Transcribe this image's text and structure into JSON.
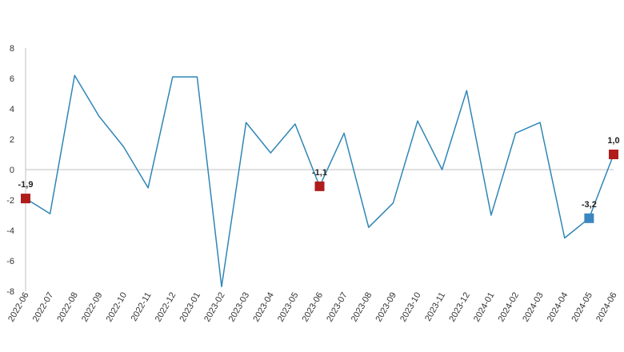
{
  "chart_data": {
    "type": "line",
    "categories": [
      "2022-06",
      "2022-07",
      "2022-08",
      "2022-09",
      "2022-10",
      "2022-11",
      "2022-12",
      "2023-01",
      "2023-02",
      "2023-03",
      "2023-04",
      "2023-05",
      "2023-06",
      "2023-07",
      "2023-08",
      "2023-09",
      "2023-10",
      "2023-11",
      "2023-12",
      "2024-01",
      "2024-02",
      "2024-03",
      "2024-04",
      "2024-05",
      "2024-06"
    ],
    "series": [
      {
        "values": [
          -1.9,
          -2.9,
          6.2,
          3.5,
          1.5,
          -1.2,
          6.1,
          6.1,
          -7.7,
          3.1,
          1.1,
          3.0,
          -1.1,
          2.4,
          -3.8,
          -2.2,
          3.2,
          0.0,
          5.2,
          -3.0,
          2.4,
          3.1,
          -4.5,
          -3.2,
          1.0
        ],
        "color": "#2f86b6"
      }
    ],
    "ylim": [
      -8,
      8
    ],
    "yticks": [
      "8",
      "6",
      "4",
      "2",
      "0",
      "-2",
      "-4",
      "-6",
      "-8"
    ],
    "ytick_values": [
      8,
      6,
      4,
      2,
      0,
      -2,
      -4,
      -6,
      -8
    ],
    "highlights": [
      {
        "index": 0,
        "label": "-1,9",
        "color": "#b01c1c"
      },
      {
        "index": 12,
        "label": "-1,1",
        "color": "#b01c1c"
      },
      {
        "index": 23,
        "label": "-3,2",
        "color": "#3a86c0"
      },
      {
        "index": 24,
        "label": "1,0",
        "color": "#b01c1c"
      }
    ],
    "title": "",
    "xlabel": "",
    "ylabel": "",
    "grid": false,
    "legend": "none",
    "axis_color": "#bfbfbf"
  }
}
